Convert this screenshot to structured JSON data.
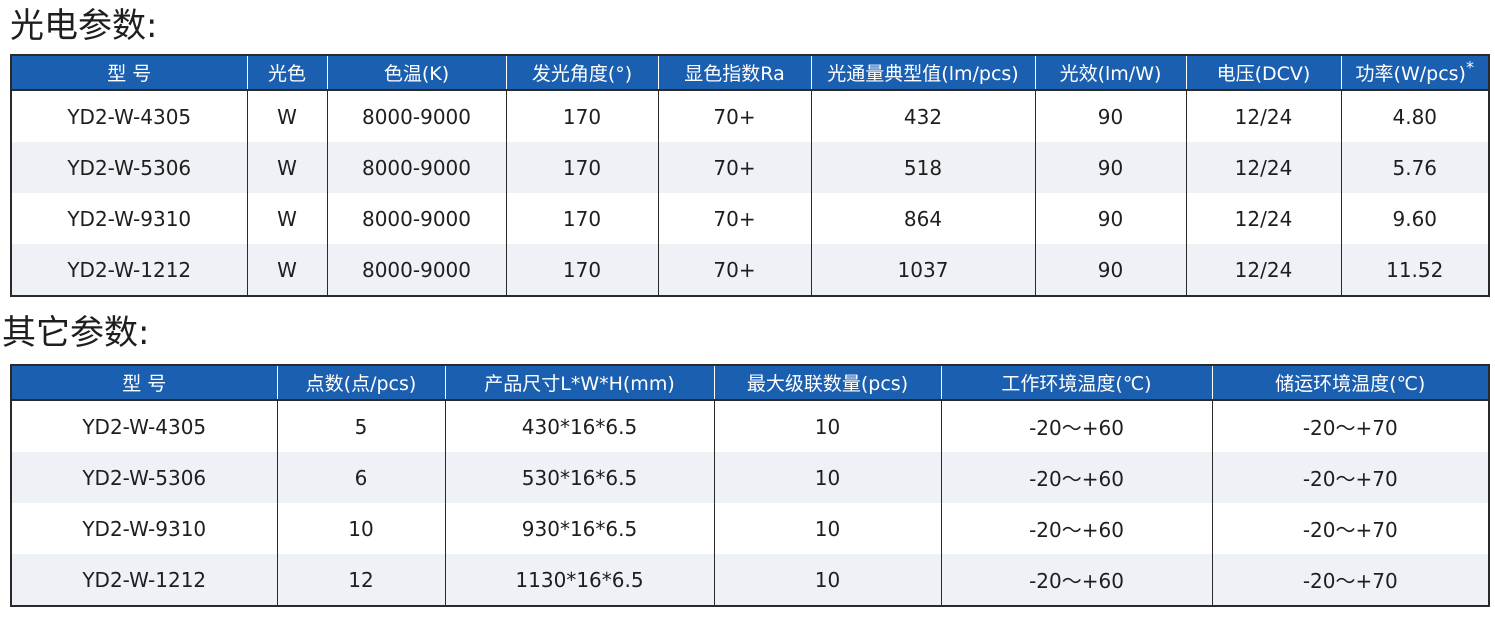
{
  "photoelectric": {
    "title": "光电参数:",
    "headers": [
      "型 号",
      "光色",
      "色温(K)",
      "发光角度(°)",
      "显色指数Ra",
      "光通量典型值(lm/pcs)",
      "光效(lm/W)",
      "电压(DCV)",
      "功率(W/pcs)"
    ],
    "power_note": "*",
    "rows": [
      [
        "YD2-W-4305",
        "W",
        "8000-9000",
        "170",
        "70+",
        "432",
        "90",
        "12/24",
        "4.80"
      ],
      [
        "YD2-W-5306",
        "W",
        "8000-9000",
        "170",
        "70+",
        "518",
        "90",
        "12/24",
        "5.76"
      ],
      [
        "YD2-W-9310",
        "W",
        "8000-9000",
        "170",
        "70+",
        "864",
        "90",
        "12/24",
        "9.60"
      ],
      [
        "YD2-W-1212",
        "W",
        "8000-9000",
        "170",
        "70+",
        "1037",
        "90",
        "12/24",
        "11.52"
      ]
    ]
  },
  "other": {
    "title": "其它参数:",
    "headers": [
      "型 号",
      "点数(点/pcs)",
      "产品尺寸L*W*H(mm)",
      "最大级联数量(pcs)",
      "工作环境温度(℃)",
      "储运环境温度(℃)"
    ],
    "rows": [
      [
        "YD2-W-4305",
        "5",
        "430*16*6.5",
        "10",
        "-20～+60",
        "-20～+70"
      ],
      [
        "YD2-W-5306",
        "6",
        "530*16*6.5",
        "10",
        "-20～+60",
        "-20～+70"
      ],
      [
        "YD2-W-9310",
        "10",
        "930*16*6.5",
        "10",
        "-20～+60",
        "-20～+70"
      ],
      [
        "YD2-W-1212",
        "12",
        "1130*16*6.5",
        "10",
        "-20～+60",
        "-20～+70"
      ]
    ]
  },
  "colors": {
    "header_bg": "#1b5fb0",
    "stripe_bg": "#eef1f5",
    "border": "#2a2a2a"
  }
}
